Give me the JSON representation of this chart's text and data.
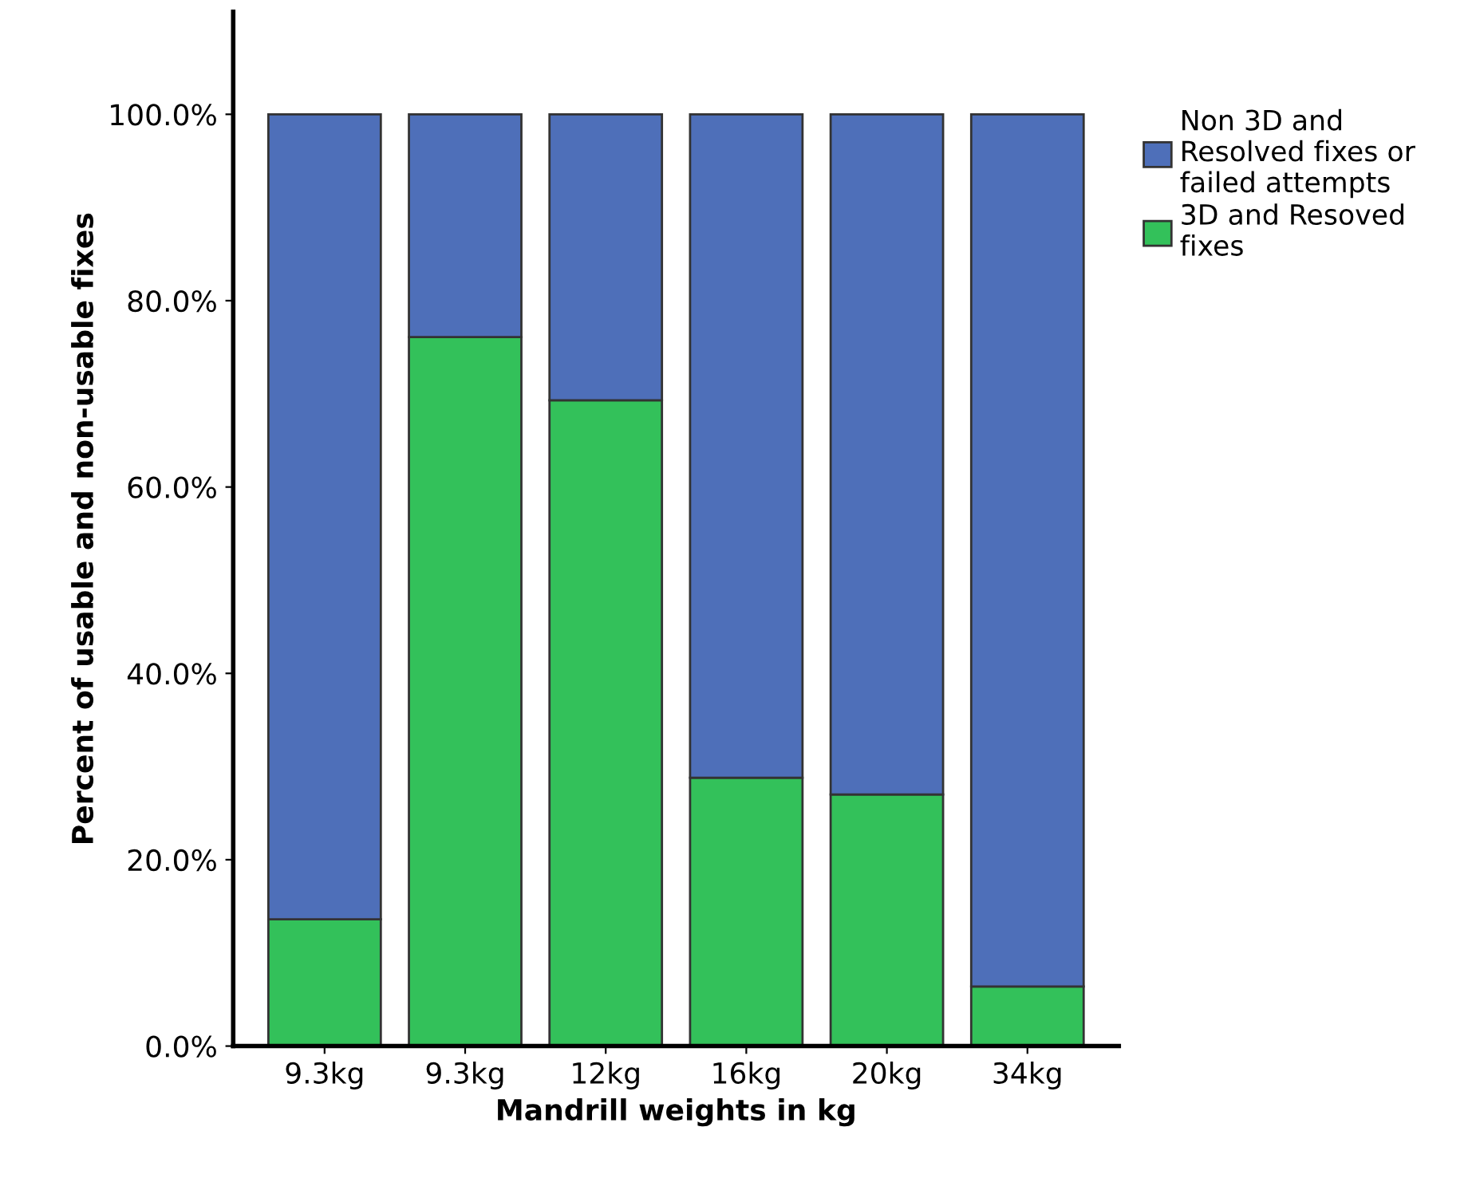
{
  "chart_data": {
    "type": "bar",
    "stacked": true,
    "xlabel": "Mandrill weights in kg",
    "ylabel": "Percent of usable and non-usable fixes",
    "categories": [
      "9.3kg",
      "9.3kg",
      "12kg",
      "16kg",
      "20kg",
      "34kg"
    ],
    "series": [
      {
        "name": "3D and Resoved\nfixes",
        "color": "#33c15a",
        "values": [
          13.6,
          76.1,
          69.3,
          28.8,
          27.0,
          6.4
        ]
      },
      {
        "name": "Non 3D and\nResolved fixes or\nfailed attempts",
        "color": "#4e6fb9",
        "values": [
          86.4,
          23.9,
          30.7,
          71.2,
          73.0,
          93.6
        ]
      }
    ],
    "ylim": [
      0,
      111
    ],
    "yticks": [
      {
        "value": 0,
        "label": "0.0%"
      },
      {
        "value": 20,
        "label": "20.0%"
      },
      {
        "value": 40,
        "label": "40.0%"
      },
      {
        "value": 60,
        "label": "60.0%"
      },
      {
        "value": 80,
        "label": "80.0%"
      },
      {
        "value": 100,
        "label": "100.0%"
      }
    ],
    "grid": false,
    "legend": "top right"
  }
}
